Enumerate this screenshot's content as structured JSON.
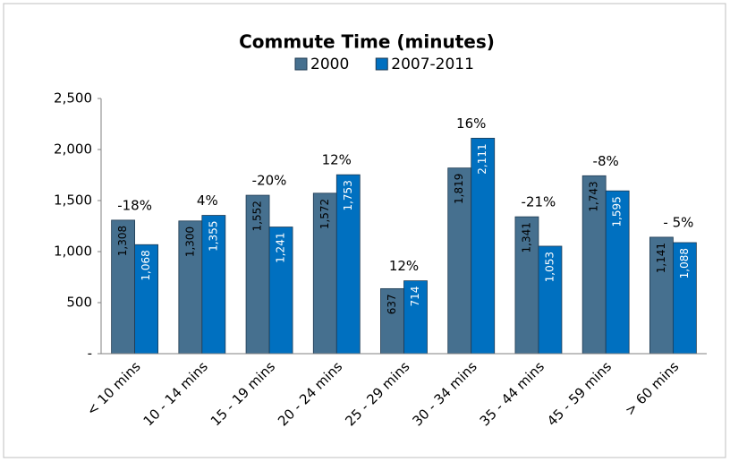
{
  "chart_data": {
    "type": "bar",
    "title": "Commute Time (minutes)",
    "categories": [
      "< 10 mins",
      "10 - 14 mins",
      "15 - 19 mins",
      "20 - 24 mins",
      "25 - 29 mins",
      "30 - 34 mins",
      "35 - 44 mins",
      "45 - 59 mins",
      "> 60 mins"
    ],
    "series": [
      {
        "name": "2000",
        "color": "#46708f",
        "values": [
          1308,
          1300,
          1552,
          1572,
          637,
          1819,
          1341,
          1743,
          1141
        ],
        "value_labels": [
          "1,308",
          "1,300",
          "1,552",
          "1,572",
          "637",
          "1,819",
          "1,341",
          "1,743",
          "1,141"
        ]
      },
      {
        "name": "2007-2011",
        "color": "#0070c0",
        "values": [
          1068,
          1355,
          1241,
          1753,
          714,
          2111,
          1053,
          1595,
          1088
        ],
        "value_labels": [
          "1,068",
          "1,355",
          "1,241",
          "1,753",
          "714",
          "2,111",
          "1,053",
          "1,595",
          "1,088"
        ]
      }
    ],
    "annotations": [
      "-18%",
      "4%",
      "-20%",
      "12%",
      "12%",
      "16%",
      "-21%",
      "-8%",
      "- 5%"
    ],
    "ylim": [
      0,
      2500
    ],
    "yticks": [
      {
        "value": 0,
        "label": "-"
      },
      500,
      {
        "value": 1000,
        "label": "1,000"
      },
      {
        "value": 1500,
        "label": "1,500"
      },
      {
        "value": 2000,
        "label": "2,000"
      },
      {
        "value": 2500,
        "label": "2,500"
      }
    ],
    "legend": "top"
  }
}
